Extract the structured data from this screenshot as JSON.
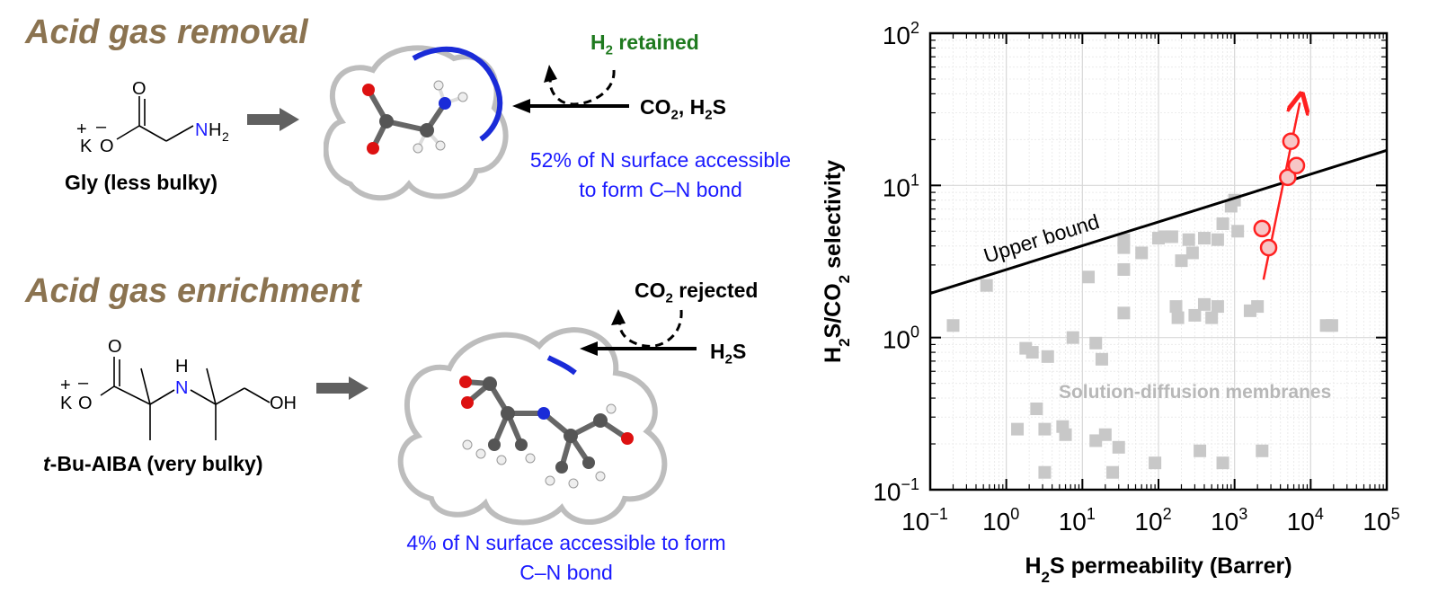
{
  "left": {
    "top": {
      "heading": "Acid gas removal",
      "molecule": "Gly (less bulky)",
      "retained": "H2 retained",
      "gases": "CO2, H2S",
      "accessibility": "52% of N surface accessible to form C–N bond",
      "colors": {
        "heading": "#8b7350",
        "accessible": "#1a1aff",
        "retained": "#1f7a1f"
      }
    },
    "bottom": {
      "heading": "Acid gas enrichment",
      "molecule_prefix": "t",
      "molecule": "-Bu-AIBA (very bulky)",
      "rejected": "CO2 rejected",
      "gases": "H2S",
      "accessibility": "4% of N surface accessible to form C–N bond"
    }
  },
  "chart_data": {
    "type": "scatter",
    "xscale": "log",
    "yscale": "log",
    "xlim": [
      0.1,
      100000
    ],
    "ylim": [
      0.1,
      100
    ],
    "xlabel": "H2S permeability (Barrer)",
    "ylabel": "H2S/CO2 selectivity",
    "x_ticks": [
      "10-1",
      "100",
      "101",
      "102",
      "103",
      "104",
      "105"
    ],
    "y_ticks": [
      "10-1",
      "100",
      "101",
      "102"
    ],
    "grid": true,
    "annotations": [
      "Upper bound",
      "Solution-diffusion membranes"
    ],
    "upper_bound": {
      "x": [
        0.1,
        100000
      ],
      "y": [
        1.95,
        17
      ]
    },
    "series": [
      {
        "marker": "square",
        "color": "#c8c8c8",
        "points": [
          [
            0.2,
            1.2
          ],
          [
            0.55,
            2.2
          ],
          [
            1.8,
            0.85
          ],
          [
            2.2,
            0.8
          ],
          [
            3.5,
            0.75
          ],
          [
            7.5,
            1.0
          ],
          [
            12,
            2.5
          ],
          [
            15,
            0.92
          ],
          [
            18,
            0.72
          ],
          [
            35,
            1.45
          ],
          [
            35,
            2.8
          ],
          [
            35,
            3.9
          ],
          [
            35,
            4.4
          ],
          [
            60,
            3.6
          ],
          [
            100,
            4.5
          ],
          [
            120,
            4.6
          ],
          [
            150,
            4.6
          ],
          [
            200,
            3.2
          ],
          [
            250,
            4.4
          ],
          [
            280,
            3.6
          ],
          [
            400,
            4.5
          ],
          [
            600,
            4.4
          ],
          [
            700,
            5.6
          ],
          [
            900,
            7.3
          ],
          [
            1000,
            8.0
          ],
          [
            1100,
            5.0
          ],
          [
            170,
            1.6
          ],
          [
            180,
            1.35
          ],
          [
            300,
            1.4
          ],
          [
            400,
            1.65
          ],
          [
            600,
            1.6
          ],
          [
            500,
            1.35
          ],
          [
            1600,
            1.5
          ],
          [
            2000,
            1.6
          ],
          [
            16000,
            1.2
          ],
          [
            19000,
            1.2
          ],
          [
            1.4,
            0.25
          ],
          [
            2.5,
            0.34
          ],
          [
            3.2,
            0.25
          ],
          [
            5.5,
            0.26
          ],
          [
            6,
            0.23
          ],
          [
            15,
            0.21
          ],
          [
            20,
            0.23
          ],
          [
            30,
            0.19
          ],
          [
            3.2,
            0.13
          ],
          [
            25,
            0.13
          ],
          [
            90,
            0.15
          ],
          [
            350,
            0.18
          ],
          [
            700,
            0.15
          ],
          [
            2300,
            0.18
          ]
        ]
      },
      {
        "marker": "circle",
        "color": "#ff2020",
        "points": [
          [
            2300,
            5.2
          ],
          [
            2800,
            3.9
          ],
          [
            5000,
            11.3
          ],
          [
            5500,
            19.5
          ],
          [
            6500,
            13.5
          ]
        ]
      }
    ],
    "trend_arrow": {
      "from": [
        2400,
        2.4
      ],
      "to": [
        7200,
        35
      ]
    }
  }
}
